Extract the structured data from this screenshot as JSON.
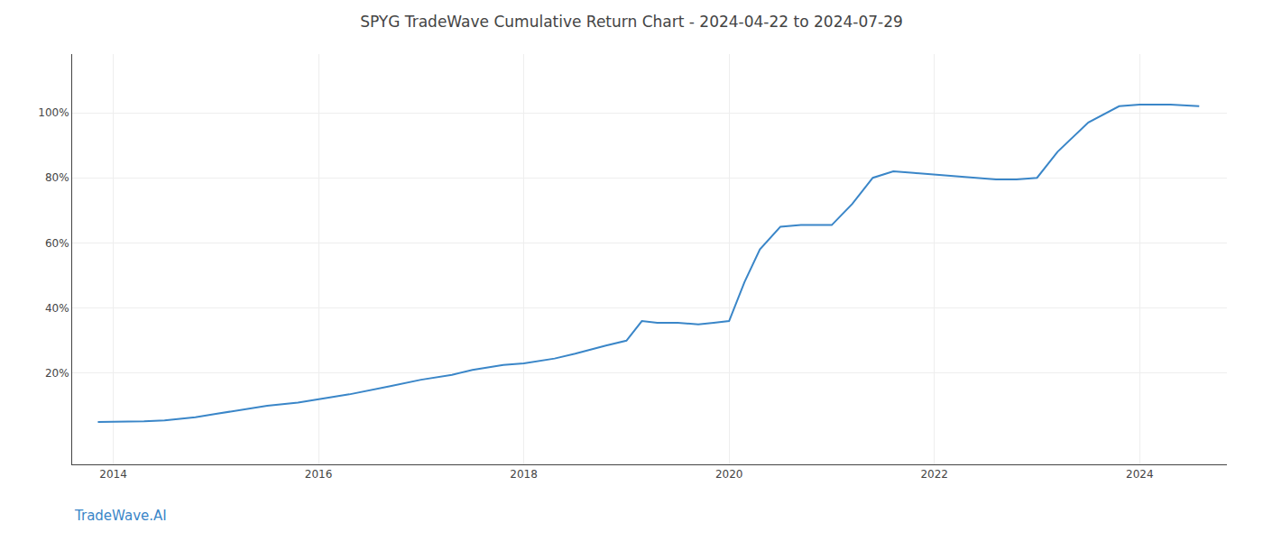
{
  "chart_data": {
    "type": "line",
    "title": "SPYG TradeWave Cumulative Return Chart - 2024-04-22 to 2024-07-29",
    "annotations": [
      "TradeWave.AI"
    ],
    "x": [
      2013.85,
      2014.0,
      2014.1,
      2014.3,
      2014.5,
      2014.8,
      2015.0,
      2015.3,
      2015.5,
      2015.8,
      2016.0,
      2016.3,
      2016.7,
      2017.0,
      2017.3,
      2017.5,
      2017.8,
      2018.0,
      2018.3,
      2018.5,
      2018.8,
      2019.0,
      2019.15,
      2019.3,
      2019.5,
      2019.7,
      2019.85,
      2020.0,
      2020.15,
      2020.3,
      2020.5,
      2020.7,
      2021.0,
      2021.2,
      2021.4,
      2021.6,
      2021.8,
      2022.0,
      2022.2,
      2022.4,
      2022.6,
      2022.8,
      2023.0,
      2023.2,
      2023.5,
      2023.8,
      2024.0,
      2024.3,
      2024.58
    ],
    "values": [
      5.0,
      5.0,
      5.0,
      5.2,
      5.5,
      6.5,
      7.5,
      9.0,
      10.0,
      11.0,
      12.0,
      13.5,
      16.0,
      18.0,
      19.5,
      21.0,
      22.5,
      23.0,
      24.5,
      26.0,
      28.5,
      30.0,
      36.0,
      35.5,
      35.5,
      35.0,
      35.5,
      36.0,
      48.0,
      58.0,
      65.0,
      65.5,
      65.5,
      72.0,
      80.0,
      82.0,
      81.5,
      81.0,
      80.5,
      80.0,
      79.5,
      79.5,
      80.0,
      88.0,
      97.0,
      102.0,
      102.5,
      102.5,
      102.0
    ],
    "color": "#3a86c8",
    "xlim": [
      2013.6,
      2024.85
    ],
    "ylim": [
      -8,
      118
    ],
    "xticks": [
      2014,
      2016,
      2018,
      2020,
      2022,
      2024
    ],
    "yticks": [
      {
        "value": 20,
        "label": "20%"
      },
      {
        "value": 40,
        "label": "40%"
      },
      {
        "value": 60,
        "label": "60%"
      },
      {
        "value": 80,
        "label": "80%"
      },
      {
        "value": 100,
        "label": "100%"
      }
    ],
    "grid": true
  }
}
